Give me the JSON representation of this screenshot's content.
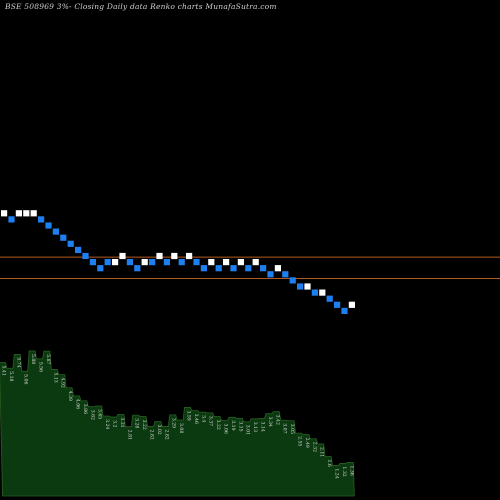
{
  "chart_data": [
    {
      "type": "renko",
      "title": "BSE 508969 3%- Closing Daily data Renko charts MunafaSutra.com",
      "colors": {
        "background": "#000000",
        "up_brick": "#ffffff",
        "down_brick": "#1e7ff0",
        "level_line": "#b35a1f",
        "text": "#cfcfcf"
      },
      "grid": false,
      "bricks": [
        {
          "col": 0,
          "level": 18,
          "dir": "up"
        },
        {
          "col": 1,
          "level": 17,
          "dir": "down"
        },
        {
          "col": 2,
          "level": 18,
          "dir": "up"
        },
        {
          "col": 3,
          "level": 18,
          "dir": "up"
        },
        {
          "col": 4,
          "level": 18,
          "dir": "up"
        },
        {
          "col": 5,
          "level": 17,
          "dir": "down"
        },
        {
          "col": 6,
          "level": 16,
          "dir": "down"
        },
        {
          "col": 7,
          "level": 15,
          "dir": "down"
        },
        {
          "col": 8,
          "level": 14,
          "dir": "down"
        },
        {
          "col": 9,
          "level": 13,
          "dir": "down"
        },
        {
          "col": 10,
          "level": 12,
          "dir": "down"
        },
        {
          "col": 11,
          "level": 11,
          "dir": "down"
        },
        {
          "col": 12,
          "level": 10,
          "dir": "down"
        },
        {
          "col": 13,
          "level": 9,
          "dir": "down"
        },
        {
          "col": 14,
          "level": 10,
          "dir": "down"
        },
        {
          "col": 15,
          "level": 10,
          "dir": "up"
        },
        {
          "col": 16,
          "level": 11,
          "dir": "up"
        },
        {
          "col": 17,
          "level": 10,
          "dir": "down"
        },
        {
          "col": 18,
          "level": 9,
          "dir": "down"
        },
        {
          "col": 19,
          "level": 10,
          "dir": "up"
        },
        {
          "col": 20,
          "level": 10,
          "dir": "down"
        },
        {
          "col": 21,
          "level": 11,
          "dir": "up"
        },
        {
          "col": 22,
          "level": 10,
          "dir": "down"
        },
        {
          "col": 23,
          "level": 11,
          "dir": "up"
        },
        {
          "col": 24,
          "level": 10,
          "dir": "down"
        },
        {
          "col": 25,
          "level": 11,
          "dir": "up"
        },
        {
          "col": 26,
          "level": 10,
          "dir": "down"
        },
        {
          "col": 27,
          "level": 9,
          "dir": "down"
        },
        {
          "col": 28,
          "level": 10,
          "dir": "up"
        },
        {
          "col": 29,
          "level": 9,
          "dir": "down"
        },
        {
          "col": 30,
          "level": 10,
          "dir": "up"
        },
        {
          "col": 31,
          "level": 9,
          "dir": "down"
        },
        {
          "col": 32,
          "level": 10,
          "dir": "up"
        },
        {
          "col": 33,
          "level": 9,
          "dir": "down"
        },
        {
          "col": 34,
          "level": 10,
          "dir": "up"
        },
        {
          "col": 35,
          "level": 9,
          "dir": "down"
        },
        {
          "col": 36,
          "level": 8,
          "dir": "down"
        },
        {
          "col": 37,
          "level": 9,
          "dir": "up"
        },
        {
          "col": 38,
          "level": 8,
          "dir": "down"
        },
        {
          "col": 39,
          "level": 7,
          "dir": "down"
        },
        {
          "col": 40,
          "level": 6,
          "dir": "down"
        },
        {
          "col": 41,
          "level": 6,
          "dir": "up"
        },
        {
          "col": 42,
          "level": 5,
          "dir": "down"
        },
        {
          "col": 43,
          "level": 5,
          "dir": "up"
        },
        {
          "col": 44,
          "level": 4,
          "dir": "down"
        },
        {
          "col": 45,
          "level": 3,
          "dir": "down"
        },
        {
          "col": 46,
          "level": 2,
          "dir": "down"
        },
        {
          "col": 47,
          "level": 3,
          "dir": "up"
        }
      ],
      "reference_levels": [
        10.3,
        6.8
      ]
    },
    {
      "type": "area",
      "fill": "#0b3a10",
      "stroke": "#2a5e22",
      "label_color": "#d9d9d9",
      "y_range": [
        0,
        7
      ],
      "points": [
        {
          "x": 0,
          "y": 5.41
        },
        {
          "x": 1,
          "y": 5.18
        },
        {
          "x": 2,
          "y": 5.74
        },
        {
          "x": 3,
          "y": 5.06
        },
        {
          "x": 4,
          "y": 5.88
        },
        {
          "x": 5,
          "y": 5.56
        },
        {
          "x": 6,
          "y": 5.87
        },
        {
          "x": 7,
          "y": 5.13
        },
        {
          "x": 8,
          "y": 4.92
        },
        {
          "x": 9,
          "y": 4.39
        },
        {
          "x": 10,
          "y": 4.06
        },
        {
          "x": 11,
          "y": 3.86
        },
        {
          "x": 12,
          "y": 3.62
        },
        {
          "x": 13,
          "y": 3.65
        },
        {
          "x": 14,
          "y": 3.24
        },
        {
          "x": 15,
          "y": 3.2
        },
        {
          "x": 16,
          "y": 3.31
        },
        {
          "x": 17,
          "y": 2.81
        },
        {
          "x": 18,
          "y": 3.28
        },
        {
          "x": 19,
          "y": 3.22
        },
        {
          "x": 20,
          "y": 2.82
        },
        {
          "x": 21,
          "y": 3.02
        },
        {
          "x": 22,
          "y": 2.82
        },
        {
          "x": 23,
          "y": 3.29
        },
        {
          "x": 24,
          "y": 3.08
        },
        {
          "x": 25,
          "y": 3.59
        },
        {
          "x": 26,
          "y": 3.46
        },
        {
          "x": 27,
          "y": 3.4
        },
        {
          "x": 28,
          "y": 3.37
        },
        {
          "x": 29,
          "y": 3.22
        },
        {
          "x": 30,
          "y": 3.06
        },
        {
          "x": 31,
          "y": 3.19
        },
        {
          "x": 32,
          "y": 3.15
        },
        {
          "x": 33,
          "y": 3.01
        },
        {
          "x": 34,
          "y": 3.13
        },
        {
          "x": 35,
          "y": 3.14
        },
        {
          "x": 36,
          "y": 3.34
        },
        {
          "x": 37,
          "y": 3.42
        },
        {
          "x": 38,
          "y": 3.07
        },
        {
          "x": 39,
          "y": 3.05
        },
        {
          "x": 40,
          "y": 2.55
        },
        {
          "x": 41,
          "y": 2.49
        },
        {
          "x": 42,
          "y": 2.32
        },
        {
          "x": 43,
          "y": 2.11
        },
        {
          "x": 44,
          "y": 1.6
        },
        {
          "x": 45,
          "y": 1.24
        },
        {
          "x": 46,
          "y": 1.32
        },
        {
          "x": 47,
          "y": 1.36
        }
      ],
      "labels": [
        "5.41",
        "5.18",
        "5.74",
        "5.06",
        "5.88",
        "5.56",
        "5.87",
        "5.13",
        "4.92",
        "4.39",
        "4.06",
        "3.86",
        "3.62",
        "3.65",
        "3.24",
        "3.2",
        "3.31",
        "2.81",
        "3.28",
        "3.22",
        "2.82",
        "3.02",
        "2.82",
        "3.29",
        "3.08",
        "3.59",
        "3.46",
        "3.4",
        "3.37",
        "3.22",
        "3.06",
        "3.19",
        "3.15",
        "3.01",
        "3.13",
        "3.14",
        "3.34",
        "3.42",
        "3.07",
        "3.05",
        "2.55",
        "2.49",
        "2.32",
        "2.11",
        "1.6",
        "1.24",
        "1.32",
        "1.36"
      ]
    }
  ]
}
